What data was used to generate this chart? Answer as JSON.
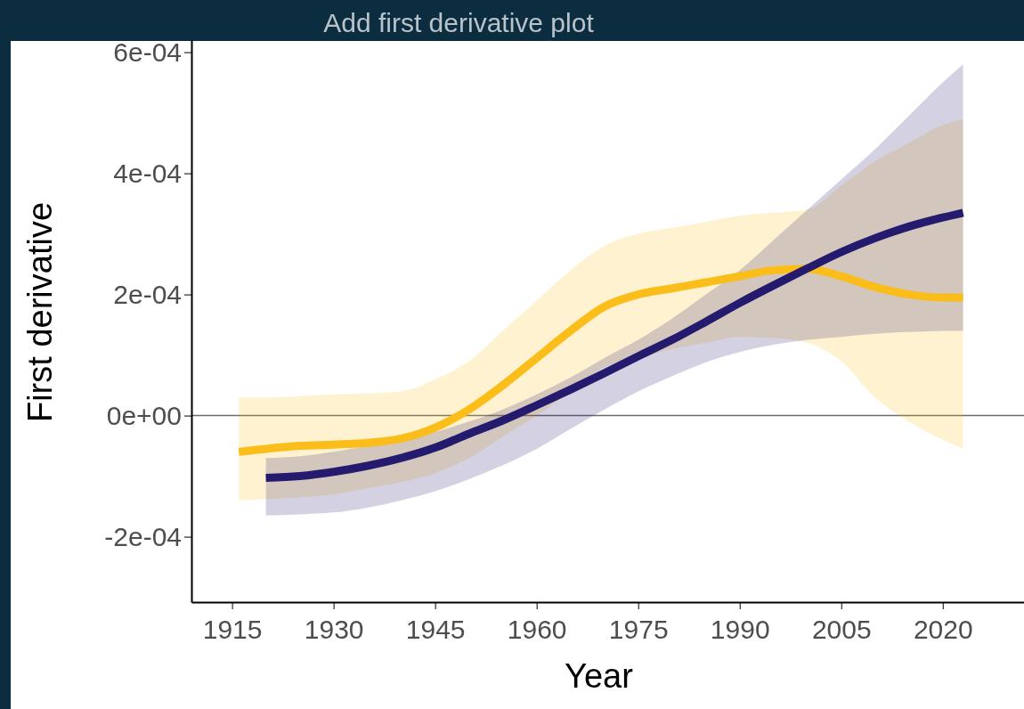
{
  "chart_data": {
    "type": "line",
    "title": "Add first derivative plot",
    "xlabel": "Year",
    "ylabel": "First derivative",
    "xlim": [
      1909,
      2032
    ],
    "xticks": [
      1915,
      1930,
      1945,
      1960,
      1975,
      1990,
      2005,
      2020
    ],
    "ylim": [
      -0.000308,
      0.00062
    ],
    "yticks": [
      {
        "value": -0.0002,
        "label": "-2e-04"
      },
      {
        "value": 0,
        "label": "0e+00"
      },
      {
        "value": 0.0002,
        "label": "2e-04"
      },
      {
        "value": 0.0004,
        "label": "4e-04"
      },
      {
        "value": 0.0006,
        "label": "6e-04"
      }
    ],
    "grid": false,
    "line_style": "solid",
    "marker": "none",
    "ref_lines": [
      {
        "axis": "y",
        "value": 0,
        "color": "#6b6b6b"
      }
    ],
    "series": [
      {
        "color": "#fbbd1a",
        "x": [
          1916,
          1920,
          1925,
          1930,
          1935,
          1940,
          1945,
          1950,
          1955,
          1960,
          1965,
          1970,
          1975,
          1980,
          1985,
          1990,
          1995,
          2000,
          2005,
          2010,
          2015,
          2020,
          2023
        ],
        "values": [
          -6e-05,
          -5.5e-05,
          -5e-05,
          -4.8e-05,
          -4.5e-05,
          -3.8e-05,
          -2e-05,
          1e-05,
          5e-05,
          9.5e-05,
          0.00014,
          0.00018,
          0.0002,
          0.00021,
          0.00022,
          0.00023,
          0.00024,
          0.000242,
          0.00023,
          0.000212,
          0.0002,
          0.000195,
          0.000195
        ],
        "upper": [
          3e-05,
          3e-05,
          3.2e-05,
          3.5e-05,
          3.7e-05,
          4e-05,
          6e-05,
          9e-05,
          0.00014,
          0.00019,
          0.00024,
          0.00028,
          0.0003,
          0.00031,
          0.00032,
          0.00033,
          0.000335,
          0.00034,
          0.00038,
          0.00042,
          0.00045,
          0.00048,
          0.00049
        ],
        "lower": [
          -0.00014,
          -0.000138,
          -0.000135,
          -0.00013,
          -0.00012,
          -0.00011,
          -9.5e-05,
          -7e-05,
          -3.5e-05,
          0.0,
          4e-05,
          8e-05,
          9.5e-05,
          0.00011,
          0.00012,
          0.00013,
          0.000128,
          0.00012,
          9e-05,
          3e-05,
          -1e-05,
          -4e-05,
          -5.5e-05
        ]
      },
      {
        "color": "#241a6e",
        "x": [
          1920,
          1925,
          1930,
          1935,
          1940,
          1945,
          1950,
          1955,
          1960,
          1965,
          1970,
          1975,
          1980,
          1985,
          1990,
          1995,
          2000,
          2005,
          2010,
          2015,
          2020,
          2023
        ],
        "values": [
          -0.000103,
          -0.0001,
          -9.3e-05,
          -8.3e-05,
          -7e-05,
          -5.3e-05,
          -3e-05,
          -8e-06,
          1.7e-05,
          4.3e-05,
          7e-05,
          9.8e-05,
          0.000125,
          0.000155,
          0.000186,
          0.000215,
          0.000243,
          0.00027,
          0.000293,
          0.000312,
          0.000327,
          0.000335
        ],
        "upper": [
          -7e-05,
          -6.7e-05,
          -6e-05,
          -5e-05,
          -4e-05,
          -2.7e-05,
          -1e-05,
          1e-05,
          3.5e-05,
          6.3e-05,
          9.5e-05,
          0.000125,
          0.00016,
          0.0002,
          0.00024,
          0.00029,
          0.00034,
          0.00039,
          0.00044,
          0.000495,
          0.00055,
          0.00058
        ],
        "lower": [
          -0.000165,
          -0.000163,
          -0.00016,
          -0.000152,
          -0.00014,
          -0.000125,
          -0.000105,
          -8.2e-05,
          -5.5e-05,
          -2.2e-05,
          1e-05,
          4e-05,
          6.5e-05,
          8.8e-05,
          0.000105,
          0.000117,
          0.000125,
          0.00013,
          0.000135,
          0.000138,
          0.00014,
          0.00014
        ]
      }
    ]
  }
}
